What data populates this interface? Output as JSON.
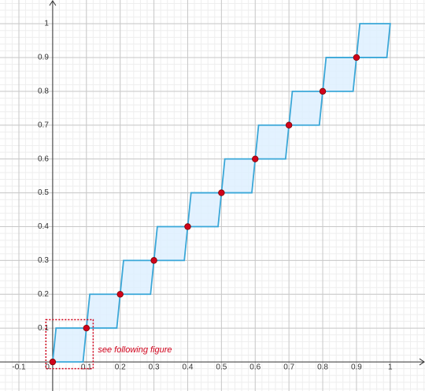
{
  "chart_data": {
    "type": "staircase",
    "xlim": [
      -0.156,
      1.103
    ],
    "ylim": [
      -0.086,
      1.07
    ],
    "xticks": [
      -0.1,
      0,
      0.1,
      0.2,
      0.3,
      0.4,
      0.5,
      0.6,
      0.7,
      0.8,
      0.9,
      1
    ],
    "yticks": [
      0.1,
      0.2,
      0.3,
      0.4,
      0.5,
      0.6,
      0.7,
      0.8,
      0.9,
      1
    ],
    "grid": true,
    "minor_grid": true,
    "shape_color": "#3aa7d8",
    "shape_fill": "#dcefff",
    "point_color": "#d0021b",
    "shapes": [
      {
        "x": [
          0,
          0.09,
          0.1,
          0.01
        ],
        "y": [
          0,
          0,
          0.1,
          0.1
        ]
      },
      {
        "x": [
          0.1,
          0.19,
          0.2,
          0.11
        ],
        "y": [
          0.1,
          0.1,
          0.2,
          0.2
        ]
      },
      {
        "x": [
          0.2,
          0.29,
          0.3,
          0.21
        ],
        "y": [
          0.2,
          0.2,
          0.3,
          0.3
        ]
      },
      {
        "x": [
          0.3,
          0.39,
          0.4,
          0.31
        ],
        "y": [
          0.3,
          0.3,
          0.4,
          0.4
        ]
      },
      {
        "x": [
          0.4,
          0.49,
          0.5,
          0.41
        ],
        "y": [
          0.4,
          0.4,
          0.5,
          0.5
        ]
      },
      {
        "x": [
          0.5,
          0.59,
          0.6,
          0.51
        ],
        "y": [
          0.5,
          0.5,
          0.6,
          0.6
        ]
      },
      {
        "x": [
          0.6,
          0.69,
          0.7,
          0.61
        ],
        "y": [
          0.6,
          0.6,
          0.7,
          0.7
        ]
      },
      {
        "x": [
          0.7,
          0.79,
          0.8,
          0.71
        ],
        "y": [
          0.7,
          0.7,
          0.8,
          0.8
        ]
      },
      {
        "x": [
          0.8,
          0.89,
          0.9,
          0.81
        ],
        "y": [
          0.8,
          0.8,
          0.9,
          0.9
        ]
      },
      {
        "x": [
          0.9,
          0.99,
          1,
          0.91
        ],
        "y": [
          0.9,
          0.9,
          1,
          1
        ]
      }
    ],
    "points": {
      "x": [
        0,
        0.1,
        0.2,
        0.3,
        0.4,
        0.5,
        0.6,
        0.7,
        0.8,
        0.9
      ],
      "y": [
        0,
        0.1,
        0.2,
        0.3,
        0.4,
        0.5,
        0.6,
        0.7,
        0.8,
        0.9
      ]
    },
    "highlight": {
      "x": [
        -0.02,
        0.12
      ],
      "y": [
        -0.02,
        0.125
      ]
    },
    "annotation": "see following figure"
  }
}
